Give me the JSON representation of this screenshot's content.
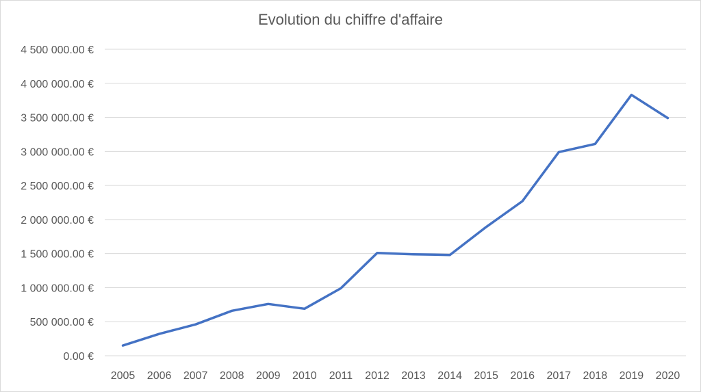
{
  "chart_data": {
    "type": "line",
    "title": "Evolution du chiffre d'affaire",
    "xlabel": "",
    "ylabel": "",
    "categories": [
      "2005",
      "2006",
      "2007",
      "2008",
      "2009",
      "2010",
      "2011",
      "2012",
      "2013",
      "2014",
      "2015",
      "2016",
      "2017",
      "2018",
      "2019",
      "2020"
    ],
    "series": [
      {
        "values": [
          150000,
          320000,
          460000,
          660000,
          760000,
          690000,
          990000,
          1510000,
          1490000,
          1480000,
          1890000,
          2270000,
          2990000,
          3110000,
          3830000,
          3490000
        ],
        "color": "#4472c4"
      }
    ],
    "ylim": [
      0,
      4500000
    ],
    "y_ticks": [
      "0.00 €",
      "500 000.00 €",
      "1 000 000.00 €",
      "1 500 000.00 €",
      "2 000 000.00 €",
      "2 500 000.00 €",
      "3 000 000.00 €",
      "3 500 000.00 €",
      "4 000 000.00 €",
      "4 500 000.00 €"
    ],
    "y_tick_values": [
      0,
      500000,
      1000000,
      1500000,
      2000000,
      2500000,
      3000000,
      3500000,
      4000000,
      4500000
    ],
    "grid": true,
    "legend": "none",
    "colors": {
      "gridline": "#d9d9d9",
      "text": "#595959",
      "line": "#4472c4"
    }
  }
}
